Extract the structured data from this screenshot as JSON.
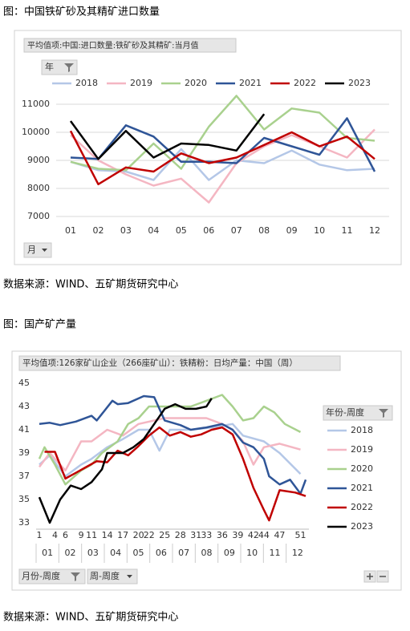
{
  "chart_data": [
    {
      "type": "line",
      "title": "图：中国铁矿砂及其精矿进口数量",
      "pivot_label": "平均值项:中国:进口数量:铁矿砂及其精矿:当月值",
      "filter_button": "年",
      "axis_button": "月",
      "source": "数据来源：WIND、五矿期货研究中心",
      "categories": [
        "01",
        "02",
        "03",
        "04",
        "05",
        "06",
        "07",
        "08",
        "09",
        "10",
        "11",
        "12"
      ],
      "ylim": [
        7000,
        11000
      ],
      "yticks": [
        7000,
        8000,
        9000,
        10000,
        11000
      ],
      "grid": true,
      "legend": "top",
      "series": [
        {
          "name": "2018",
          "color": "#b4c7e7",
          "values": [
            8950,
            8650,
            8600,
            8300,
            9400,
            8300,
            9000,
            8900,
            9350,
            8850,
            8650,
            8700
          ]
        },
        {
          "name": "2019",
          "color": "#f4b6c2",
          "values": [
            9900,
            9000,
            8500,
            8100,
            8350,
            7500,
            8900,
            9500,
            9900,
            9500,
            9100,
            10100
          ]
        },
        {
          "name": "2020",
          "color": "#a9d18e",
          "values": [
            8950,
            8700,
            8650,
            9600,
            8700,
            10200,
            11300,
            10100,
            10850,
            10700,
            9800,
            9700
          ]
        },
        {
          "name": "2021",
          "color": "#2f5597",
          "values": [
            9100,
            9050,
            10250,
            9850,
            8950,
            8950,
            8900,
            9800,
            9500,
            9200,
            10500,
            8600
          ]
        },
        {
          "name": "2022",
          "color": "#c00000",
          "values": [
            10050,
            8150,
            8750,
            8600,
            9250,
            8900,
            9100,
            9550,
            10000,
            9500,
            9850,
            9050
          ]
        },
        {
          "name": "2023",
          "color": "#000000",
          "values": [
            10400,
            9050,
            10050,
            9100,
            9600,
            9550,
            9350,
            10650,
            null,
            null,
            null,
            null
          ]
        }
      ]
    },
    {
      "type": "line",
      "title": "图：国产矿产量",
      "pivot_label": "平均值项:126家矿山企业（266座矿山）：铁精粉：日均产量：中国（周）",
      "legend_title": "年份-周度",
      "buttons": [
        "月份-周度",
        "周-周度"
      ],
      "source": "数据来源：WIND、五矿期货研究中心",
      "xlim": [
        1,
        52
      ],
      "xticks": [
        1,
        4,
        6,
        9,
        11,
        14,
        17,
        20,
        22,
        25,
        28,
        31,
        33,
        36,
        39,
        42,
        44,
        47,
        51
      ],
      "months": [
        "01",
        "02",
        "03",
        "04",
        "05",
        "06",
        "07",
        "08",
        "09",
        "10",
        "11",
        "12"
      ],
      "ylim": [
        33,
        45
      ],
      "yticks": [
        33,
        35,
        37,
        39,
        41,
        43,
        45
      ],
      "grid": false,
      "legend": "right",
      "series": [
        {
          "name": "2018",
          "color": "#b4c7e7",
          "x": [
            1,
            3,
            6,
            9,
            11,
            14,
            17,
            20,
            22,
            24,
            26,
            30,
            34,
            38,
            40,
            44,
            47,
            51
          ],
          "values": [
            38,
            38.8,
            37,
            38,
            38.5,
            39.5,
            40.2,
            41,
            41,
            39.2,
            41,
            41,
            41.2,
            41.5,
            40.5,
            40,
            39,
            37.2
          ]
        },
        {
          "name": "2019",
          "color": "#f4b6c2",
          "x": [
            1,
            3,
            6,
            9,
            11,
            14,
            17,
            20,
            25,
            33,
            36,
            38,
            40,
            42,
            44,
            47,
            51
          ],
          "values": [
            37.8,
            39,
            37.5,
            40,
            40,
            41,
            40.5,
            41.5,
            42,
            42,
            41.5,
            41,
            40,
            38,
            39.5,
            39.8,
            39.3
          ]
        },
        {
          "name": "2020",
          "color": "#a9d18e",
          "x": [
            1,
            2,
            4,
            6,
            9,
            11,
            13,
            16,
            18,
            20,
            22,
            25,
            30,
            33,
            36,
            38,
            40,
            42,
            44,
            46,
            48,
            51
          ],
          "values": [
            38.5,
            39.5,
            38,
            36.3,
            37.5,
            38,
            39,
            40,
            41.5,
            42,
            43,
            43,
            43,
            43.5,
            44,
            43,
            41.8,
            42,
            43,
            42.5,
            41.5,
            40.8
          ]
        },
        {
          "name": "2021",
          "color": "#2f5597",
          "x": [
            1,
            3,
            5,
            8,
            11,
            12,
            15,
            16,
            18,
            21,
            23,
            25,
            28,
            30,
            33,
            36,
            38,
            40,
            42,
            44,
            45,
            47,
            49,
            51,
            52
          ],
          "values": [
            41.5,
            41.6,
            41.4,
            41.7,
            42.2,
            41.8,
            43.5,
            43.2,
            43.3,
            43.9,
            43.8,
            41.8,
            41.4,
            41,
            41.2,
            41.5,
            41,
            39.9,
            39.5,
            38.5,
            37,
            36.3,
            36.7,
            35.5,
            36.7
          ]
        },
        {
          "name": "2022",
          "color": "#c00000",
          "x": [
            2,
            4,
            6,
            8,
            10,
            12,
            14,
            16,
            18,
            20,
            22,
            24,
            26,
            28,
            30,
            32,
            34,
            36,
            38,
            40,
            42,
            44,
            45,
            47,
            50,
            52
          ],
          "values": [
            39.1,
            39.1,
            36.8,
            37.3,
            37.8,
            38.3,
            38.2,
            39.2,
            38.8,
            39.6,
            40.5,
            41.2,
            40.5,
            40.8,
            40.4,
            40.6,
            41,
            41.2,
            40.6,
            38.5,
            36,
            34.1,
            33.2,
            35.8,
            35.6,
            35.3
          ]
        },
        {
          "name": "2023",
          "color": "#000000",
          "x": [
            1,
            3,
            5,
            7,
            9,
            11,
            13,
            14,
            17,
            19,
            21,
            23,
            25,
            27,
            29,
            31,
            33,
            34
          ],
          "values": [
            35.2,
            33,
            35,
            36.2,
            35.9,
            36.5,
            37.6,
            39,
            39,
            39.5,
            40.2,
            41.5,
            42.8,
            43.2,
            42.8,
            42.8,
            43,
            43.7
          ]
        }
      ]
    }
  ]
}
